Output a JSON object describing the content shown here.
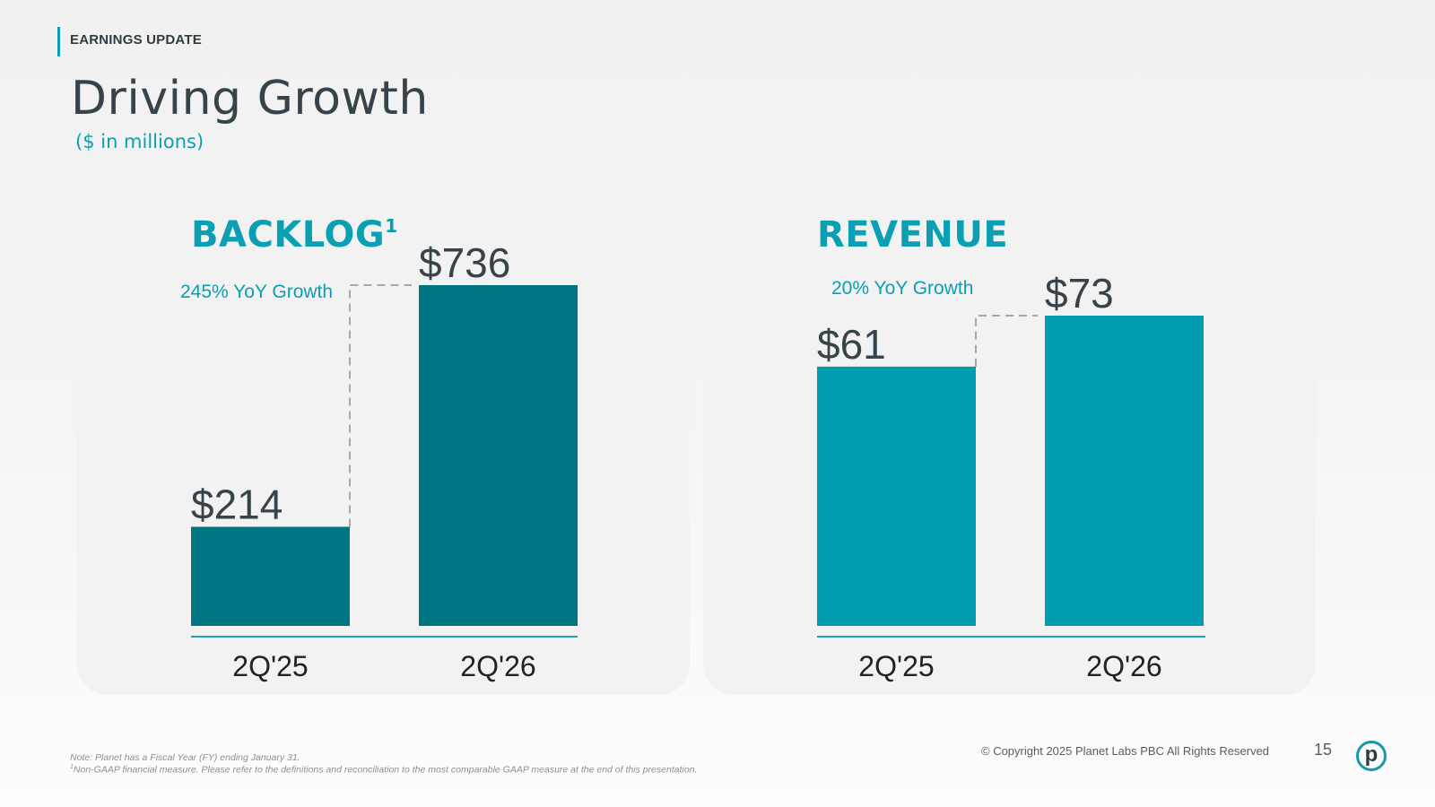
{
  "header": {
    "section_label": "EARNINGS UPDATE",
    "title": "Driving Growth",
    "subtitle": "($ in millions)"
  },
  "colors": {
    "accent": "#0a9fb2",
    "backlog_bar": "#007582",
    "revenue_bar": "#009db1",
    "value_text": "#37434a",
    "axis_line": "#1aa3b5",
    "dash_line": "#a8a8a8"
  },
  "chart_data": [
    {
      "type": "bar",
      "title": "BACKLOG",
      "title_superscript": "1",
      "categories": [
        "2Q'25",
        "2Q'26"
      ],
      "values": [
        214,
        736
      ],
      "value_labels": [
        "$214",
        "$736"
      ],
      "annotation": "245% YoY Growth",
      "xlabel": "",
      "ylabel": "",
      "ylim": [
        0,
        736
      ],
      "grid": false,
      "legend": "none"
    },
    {
      "type": "bar",
      "title": "REVENUE",
      "title_superscript": "",
      "categories": [
        "2Q'25",
        "2Q'26"
      ],
      "values": [
        61,
        73
      ],
      "value_labels": [
        "$61",
        "$73"
      ],
      "annotation": "20% YoY Growth",
      "xlabel": "",
      "ylabel": "",
      "ylim": [
        0,
        73
      ],
      "grid": false,
      "legend": "none"
    }
  ],
  "footer": {
    "note": "Note: Planet has a Fiscal Year (FY) ending January 31.",
    "footnote_marker": "1",
    "footnote": "Non-GAAP financial measure. Please refer to the definitions and reconciliation to the most comparable GAAP measure at the end of this presentation.",
    "copyright": "© Copyright 2025 Planet Labs PBC  All Rights Reserved",
    "page_number": "15",
    "logo_letter": "p"
  }
}
